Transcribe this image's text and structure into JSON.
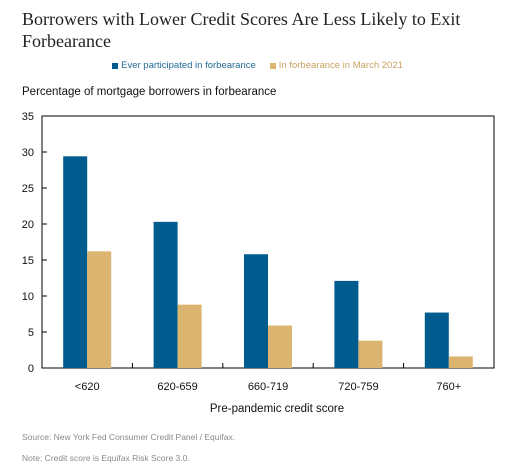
{
  "chart_data": {
    "type": "bar",
    "title": "Borrowers with Lower Credit Scores Are Less Likely to Exit Forbearance",
    "ylabel": "Percentage of mortgage borrowers in forbearance",
    "xlabel": "Pre-pandemic credit score",
    "categories": [
      "<620",
      "620-659",
      "660-719",
      "720-759",
      "760+"
    ],
    "series": [
      {
        "name": "Ever participated in forbearance",
        "color": "#005b8e",
        "values": [
          29.4,
          20.3,
          15.8,
          12.1,
          7.7
        ]
      },
      {
        "name": "In forbearance in March 2021",
        "color": "#dbb56f",
        "values": [
          16.2,
          8.8,
          5.9,
          3.8,
          1.6
        ]
      }
    ],
    "ylim": [
      0,
      35
    ],
    "yticks": [
      0,
      5,
      10,
      15,
      20,
      25,
      30,
      35
    ],
    "grid": false,
    "legend_position": "top-center"
  },
  "notes": {
    "source": "Source: New York Fed Consumer Credit Panel / Equifax.",
    "credit": "Note: Credit score is Equifax Risk Score 3.0."
  }
}
